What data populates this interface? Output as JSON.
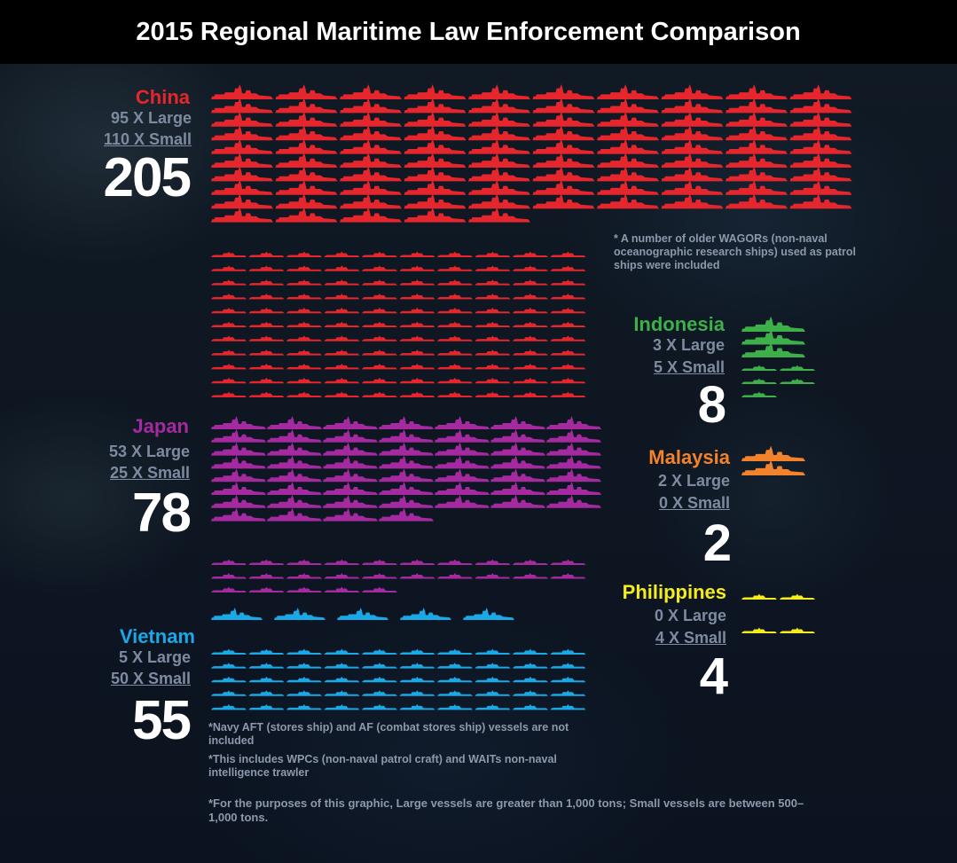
{
  "title": "2015 Regional Maritime Law Enforcement Comparison",
  "colors": {
    "China": "#e5262d",
    "Japan": "#a52aa0",
    "Vietnam": "#1ba8e6",
    "Indonesia": "#3eb04a",
    "Malaysia": "#f2822c",
    "Philippines": "#f4ec1b",
    "text_muted": "#7e8aa0"
  },
  "countries": [
    {
      "name": "China",
      "large_label": "95 X Large",
      "small_label": "110 X Small",
      "total": "205"
    },
    {
      "name": "Japan",
      "large_label": "53 X Large",
      "small_label": "25 X Small",
      "total": "78"
    },
    {
      "name": "Vietnam",
      "large_label": "5 X Large",
      "small_label": "50 X Small",
      "total": "55"
    },
    {
      "name": "Indonesia",
      "large_label": "3 X Large",
      "small_label": "5 X Small",
      "total": "8"
    },
    {
      "name": "Malaysia",
      "large_label": "2 X Large",
      "small_label": "0 X Small",
      "total": "2"
    },
    {
      "name": "Philippines",
      "large_label": "0 X Large",
      "small_label": "4 X Small",
      "total": "4"
    }
  ],
  "notes": {
    "china": "* A number of older WAGORs (non-naval oceanographic research ships) used as patrol ships were included",
    "japan_navy": "*Navy AFT (stores ship) and AF (combat stores ship) vessels are not included",
    "vietnam": "*This includes WPCs (non-naval patrol craft) and WAITs non-naval intelligence trawler",
    "footnote": "*For the purposes of this graphic, Large vessels are greater than 1,000 tons; Small vessels are between 500–1,000 tons."
  },
  "chart_data": {
    "type": "bar",
    "categories": [
      "China",
      "Japan",
      "Vietnam",
      "Indonesia",
      "Malaysia",
      "Philippines"
    ],
    "series": [
      {
        "name": "Large",
        "values": [
          95,
          53,
          5,
          3,
          2,
          0
        ]
      },
      {
        "name": "Small",
        "values": [
          110,
          25,
          50,
          5,
          0,
          4
        ]
      }
    ],
    "totals": [
      205,
      78,
      55,
      8,
      2,
      4
    ],
    "title": "2015 Regional Maritime Law Enforcement Comparison"
  }
}
